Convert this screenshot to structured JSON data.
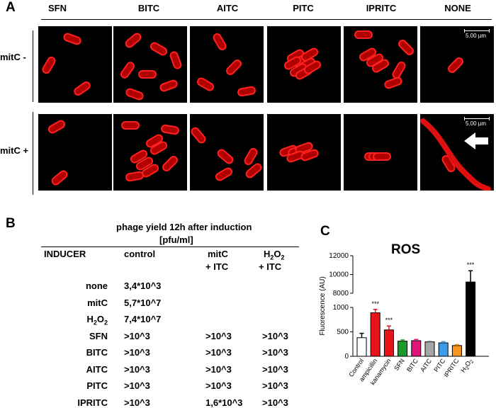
{
  "panel_a": {
    "letter": "A",
    "columns": [
      "SFN",
      "BITC",
      "AITC",
      "PITC",
      "IPRITC",
      "NONE"
    ],
    "rows": [
      "mitC -",
      "mitC +"
    ],
    "scale_bar": "5.00 µm"
  },
  "panel_b": {
    "letter": "B",
    "title_line1": "phage yield 12h after induction",
    "title_line2": "[pfu/ml]",
    "headers": {
      "inducer": "INDUCER",
      "control": "control",
      "mitc_1": "mitC",
      "mitc_2": "+ ITC",
      "h2o2_h": "H",
      "h2o2_sub1": "2",
      "h2o2_o": "O",
      "h2o2_sub2": "2",
      "h2o2_2": "+ ITC"
    },
    "rows": [
      {
        "inducer": "none",
        "control": "3,4*10^3",
        "mitc": "",
        "h2o2": ""
      },
      {
        "inducer": "mitC",
        "control": "5,7*10^7",
        "mitc": "",
        "h2o2": ""
      },
      {
        "inducer": "H2O2",
        "control": "7,4*10^7",
        "mitc": "",
        "h2o2": ""
      },
      {
        "inducer": "SFN",
        "control": ">10^3",
        "mitc": ">10^3",
        "h2o2": ">10^3"
      },
      {
        "inducer": "BITC",
        "control": ">10^3",
        "mitc": ">10^3",
        "h2o2": ">10^3"
      },
      {
        "inducer": "AITC",
        "control": ">10^3",
        "mitc": ">10^3",
        "h2o2": ">10^3"
      },
      {
        "inducer": "PITC",
        "control": ">10^3",
        "mitc": ">10^3",
        "h2o2": ">10^3"
      },
      {
        "inducer": "IPRITC",
        "control": ">10^3",
        "mitc": "1,6*10^3",
        "h2o2": ">10^3"
      }
    ]
  },
  "chart_data": {
    "type": "bar",
    "panel_letter": "C",
    "title": "ROS",
    "ylabel": "Fluorescence (AU)",
    "xlabel": "",
    "categories": [
      "Control",
      "ampicillin",
      "kanamycin",
      "SFN",
      "BITC",
      "AITC",
      "PITC",
      "IPRITC",
      "H2O2"
    ],
    "values": [
      380,
      890,
      540,
      310,
      320,
      295,
      275,
      220,
      9200
    ],
    "errors": [
      90,
      70,
      80,
      25,
      25,
      15,
      25,
      20,
      1200
    ],
    "significance": [
      "",
      "***",
      "***",
      "",
      "",
      "",
      "",
      "",
      "***"
    ],
    "colors": [
      "#ffffff",
      "#e8141b",
      "#e8141b",
      "#1c9a2b",
      "#e0157a",
      "#a6a6a6",
      "#3c9bea",
      "#f7941d",
      "#000000"
    ],
    "y_lower_ticks": [
      "0",
      "500",
      "1000"
    ],
    "y_upper_ticks": [
      "8000",
      "10000",
      "12000"
    ],
    "y_broken_axis": {
      "lower": [
        0,
        1000
      ],
      "upper": [
        8000,
        12000
      ]
    },
    "grid": false
  }
}
